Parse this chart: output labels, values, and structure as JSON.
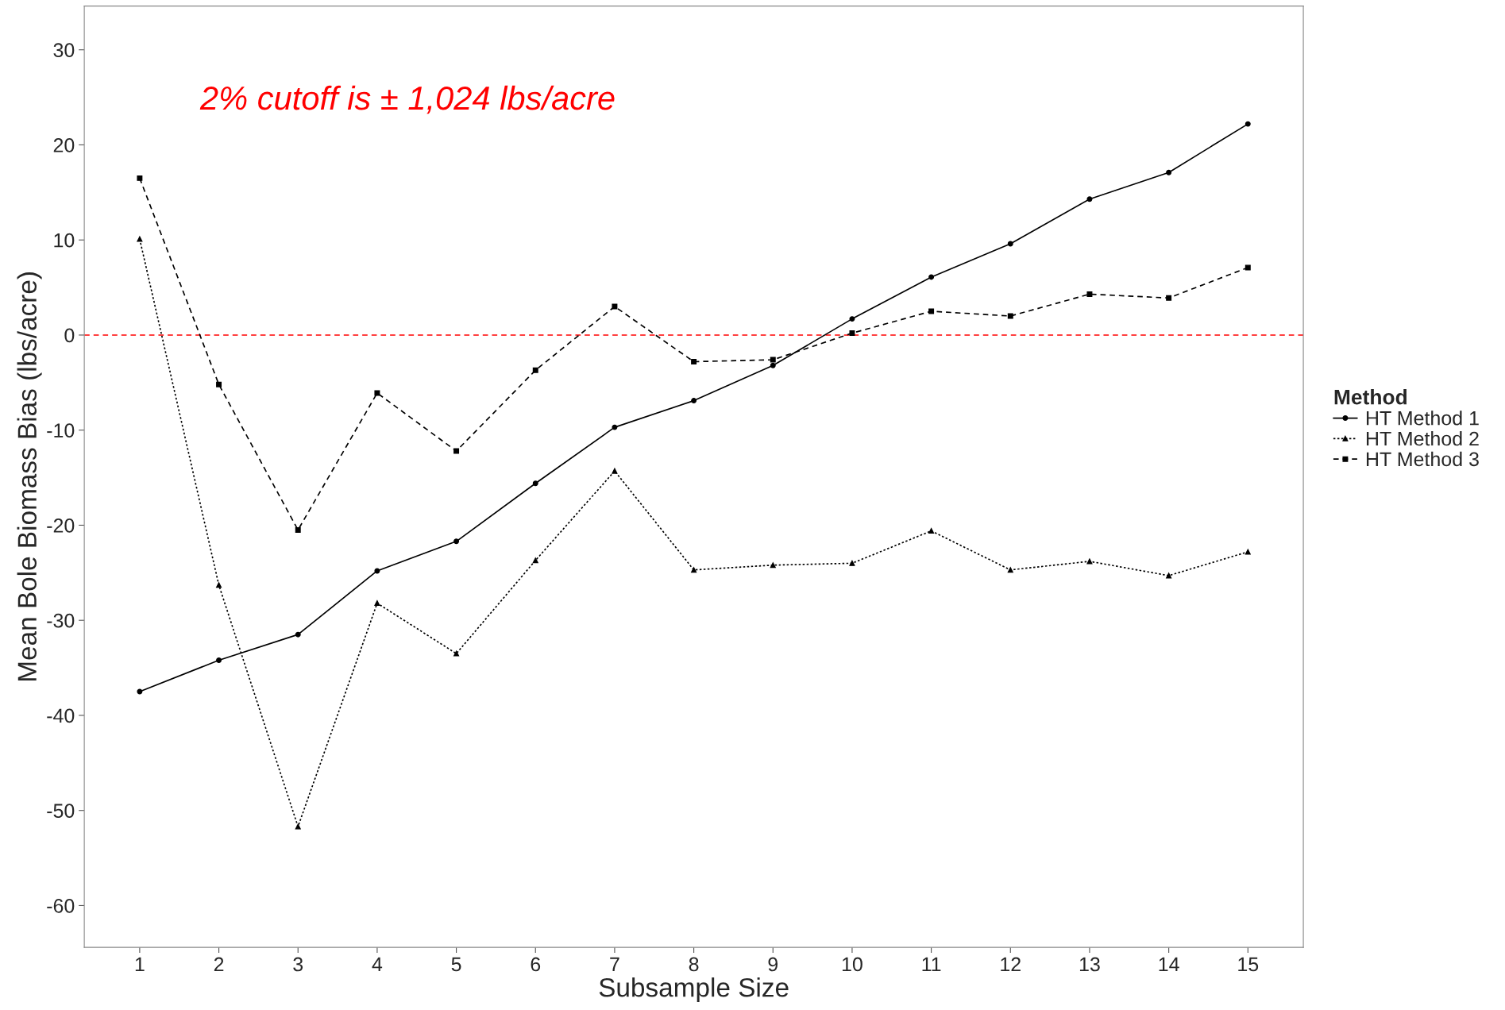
{
  "chart_data": {
    "type": "line",
    "xlabel": "Subsample Size",
    "ylabel": "Mean Bole Biomass Bias (lbs/acre)",
    "x": [
      1,
      2,
      3,
      4,
      5,
      6,
      7,
      8,
      9,
      10,
      11,
      12,
      13,
      14,
      15
    ],
    "xlim": [
      0.3,
      15.7
    ],
    "xticks": [
      1,
      2,
      3,
      4,
      5,
      6,
      7,
      8,
      9,
      10,
      11,
      12,
      13,
      14,
      15
    ],
    "ylim": [
      -64.4,
      34.6
    ],
    "yticks": [
      -60,
      -50,
      -40,
      -30,
      -20,
      -10,
      0,
      10,
      20,
      30
    ],
    "grid": false,
    "legend": "right",
    "legend_title": "Method",
    "series": [
      {
        "name": "HT Method 1",
        "color": "#000000",
        "marker": "circle",
        "line_style": "solid",
        "values": [
          -37.5,
          -34.2,
          -31.5,
          -24.8,
          -21.7,
          -15.6,
          -9.7,
          -6.9,
          -3.2,
          1.7,
          6.1,
          9.6,
          14.3,
          17.1,
          22.2
        ]
      },
      {
        "name": "HT Method 2",
        "color": "#000000",
        "marker": "triangle",
        "line_style": "dotted",
        "values": [
          10.1,
          -26.3,
          -51.7,
          -28.2,
          -33.5,
          -23.7,
          -14.3,
          -24.7,
          -24.2,
          -24.0,
          -20.6,
          -24.7,
          -23.8,
          -25.3,
          -22.8
        ]
      },
      {
        "name": "HT Method 3",
        "color": "#000000",
        "marker": "square",
        "line_style": "dashed",
        "values": [
          16.5,
          -5.2,
          -20.5,
          -6.1,
          -12.2,
          -3.7,
          3.0,
          -2.8,
          -2.6,
          0.2,
          2.5,
          2.0,
          4.3,
          3.9,
          7.1
        ]
      }
    ],
    "ref_lines": [
      {
        "axis": "y",
        "value": 0,
        "color": "#ff0000",
        "line_style": "dashed"
      }
    ],
    "annotations": [
      "2% cutoff is ± 1,024 lbs/acre"
    ]
  }
}
